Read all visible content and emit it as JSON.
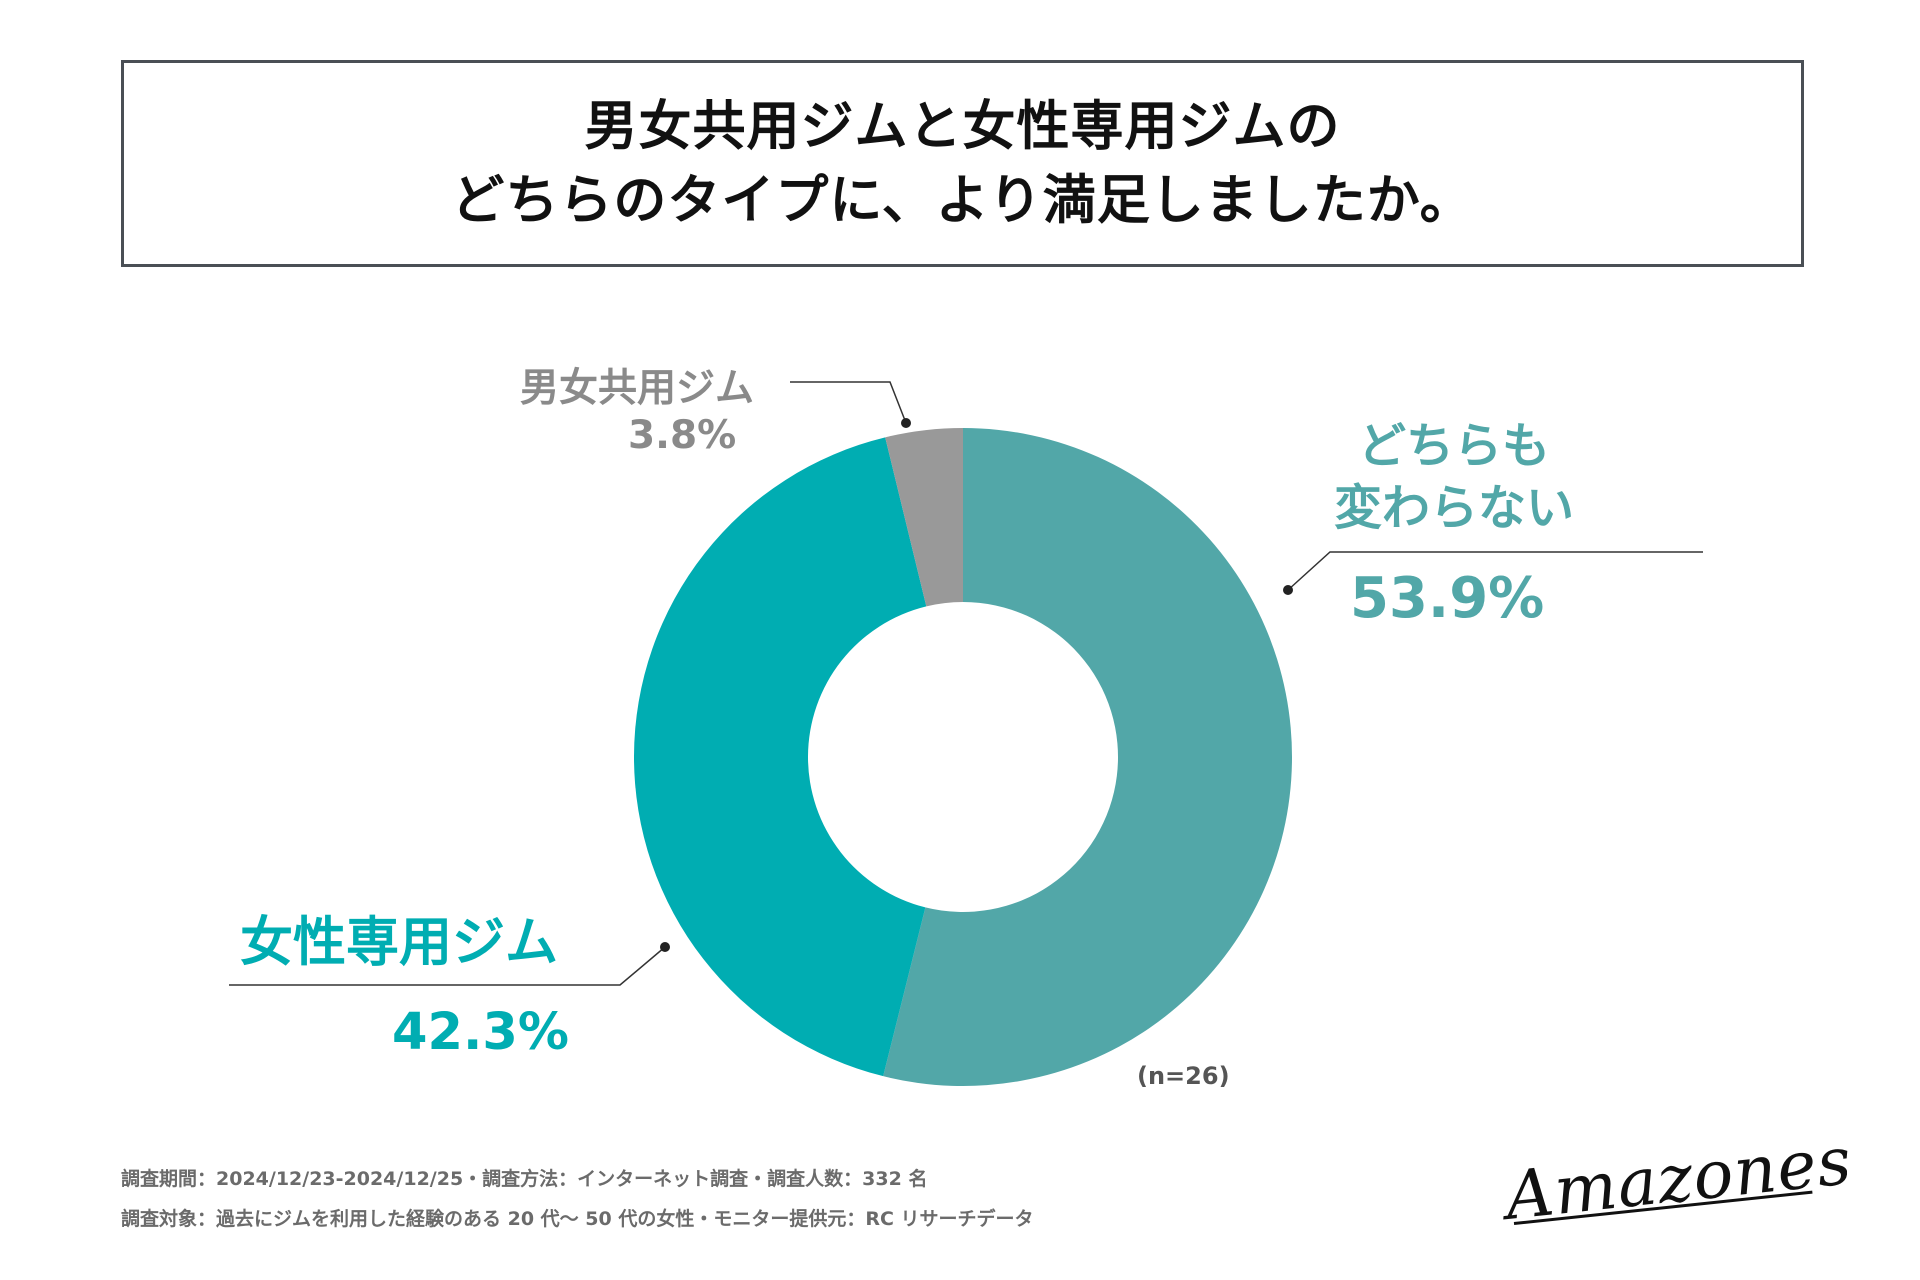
{
  "title": {
    "line1": "男女共用ジムと女性専用ジムの",
    "line2": "どちらのタイプに、より満足しましたか。"
  },
  "chart_data": {
    "type": "pie",
    "variant": "donut",
    "title": "男女共用ジムと女性専用ジムのどちらのタイプに、より満足しましたか。",
    "sample_size": "(n=26)",
    "slices": [
      {
        "name": "どちらも変わらない",
        "label_line1": "どちらも",
        "label_line2": "変わらない",
        "value": 53.9,
        "value_label": "53.9%",
        "color": "#52a7a8"
      },
      {
        "name": "女性専用ジム",
        "value": 42.3,
        "value_label": "42.3%",
        "color": "#00adb2"
      },
      {
        "name": "男女共用ジム",
        "value": 3.8,
        "value_label": "3.8%",
        "color": "#999999"
      }
    ]
  },
  "footnotes": {
    "line1": "調査期間：2024/12/23-2024/12/25・調査方法：インターネット調査・調査人数：332 名",
    "line2": "調査対象：過去にジムを利用した経験のある 20 代～ 50 代の女性・モニター提供元：RC リサーチデータ"
  },
  "logo": {
    "text": "Amazones"
  }
}
